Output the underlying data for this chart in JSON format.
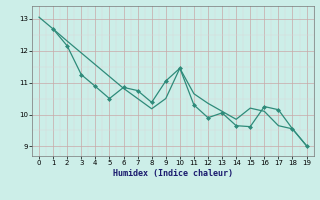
{
  "smooth_x": [
    0,
    1,
    2,
    3,
    4,
    5,
    6,
    7,
    8,
    9,
    10,
    11,
    12,
    13,
    14,
    15,
    16,
    17,
    18,
    19
  ],
  "smooth_y": [
    13.05,
    12.68,
    12.3,
    11.93,
    11.56,
    11.19,
    10.82,
    10.5,
    10.18,
    10.5,
    11.45,
    10.65,
    10.35,
    10.1,
    9.85,
    10.2,
    10.1,
    9.65,
    9.55,
    9.02
  ],
  "jagged_x": [
    1,
    2,
    3,
    4,
    5,
    6,
    7,
    8,
    9,
    10,
    11,
    12,
    13,
    14,
    15,
    16,
    17,
    18,
    19
  ],
  "jagged_y": [
    12.68,
    12.15,
    11.25,
    10.88,
    10.5,
    10.85,
    10.75,
    10.38,
    11.05,
    11.45,
    10.3,
    9.9,
    10.05,
    9.65,
    9.62,
    10.25,
    10.15,
    9.55,
    9.02
  ],
  "line_color": "#2e8b7a",
  "bg_color": "#cceee8",
  "xlabel": "Humidex (Indice chaleur)",
  "ylim": [
    8.7,
    13.4
  ],
  "xlim": [
    -0.5,
    19.5
  ],
  "yticks": [
    9,
    10,
    11,
    12,
    13
  ],
  "xticks": [
    0,
    1,
    2,
    3,
    4,
    5,
    6,
    7,
    8,
    9,
    10,
    11,
    12,
    13,
    14,
    15,
    16,
    17,
    18,
    19
  ]
}
